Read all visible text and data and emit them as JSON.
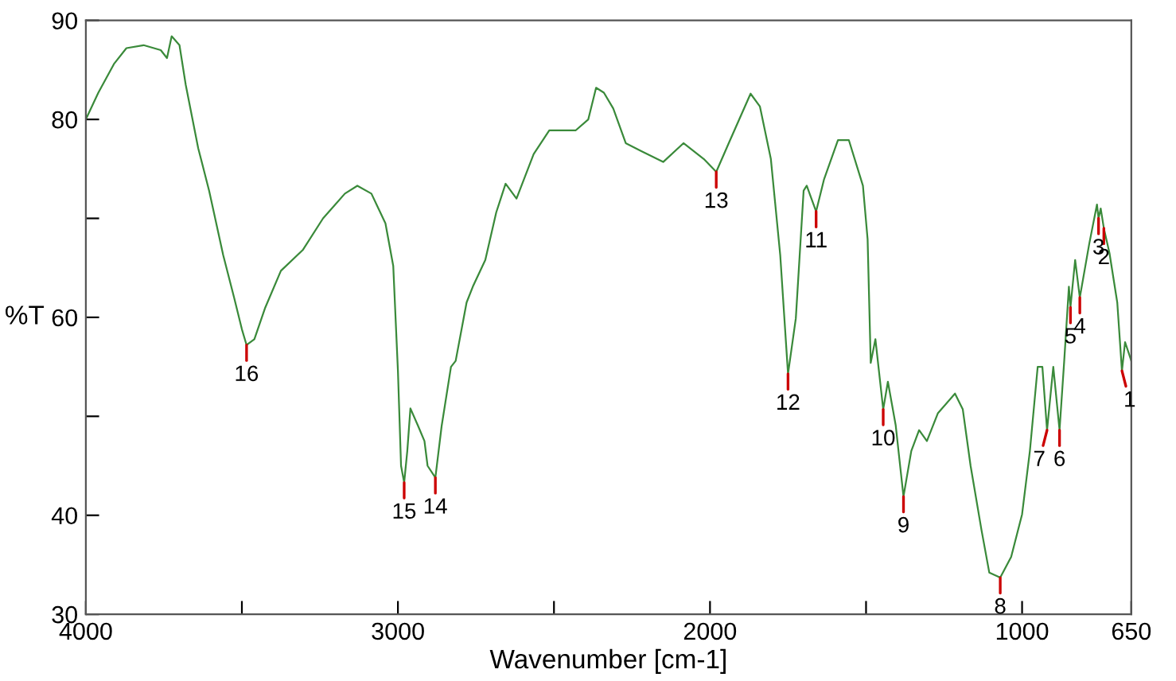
{
  "chart_data": {
    "type": "line",
    "xlabel": "Wavenumber [cm-1]",
    "ylabel": "%T",
    "xlim": [
      4000,
      650
    ],
    "ylim": [
      30,
      90
    ],
    "xticks": [
      4000,
      {
        "value": 3500,
        "label": null
      },
      3000,
      {
        "value": 2500,
        "label": null
      },
      2000,
      {
        "value": 1500,
        "label": null
      },
      1000,
      650
    ],
    "yticks": [
      30,
      40,
      {
        "value": 50,
        "label": null
      },
      60,
      {
        "value": 70,
        "label": null
      },
      80,
      90
    ],
    "grid": false,
    "marker": "none",
    "line_style": "solid",
    "series": [
      {
        "color": "#3a8a3a",
        "x": [
          4000,
          3960,
          3910,
          3870,
          3815,
          3760,
          3740,
          3725,
          3700,
          3680,
          3640,
          3605,
          3560,
          3525,
          3500,
          3485,
          3460,
          3425,
          3375,
          3305,
          3240,
          3170,
          3130,
          3085,
          3040,
          3015,
          3000,
          2990,
          2980,
          2970,
          2960,
          2935,
          2915,
          2905,
          2880,
          2860,
          2830,
          2815,
          2780,
          2760,
          2720,
          2685,
          2655,
          2620,
          2565,
          2515,
          2430,
          2390,
          2365,
          2340,
          2310,
          2270,
          2220,
          2150,
          2085,
          2020,
          1980,
          1940,
          1870,
          1840,
          1805,
          1775,
          1750,
          1725,
          1700,
          1690,
          1660,
          1635,
          1590,
          1555,
          1510,
          1495,
          1485,
          1470,
          1445,
          1430,
          1405,
          1380,
          1355,
          1330,
          1305,
          1270,
          1215,
          1190,
          1165,
          1130,
          1105,
          1070,
          1035,
          1000,
          975,
          950,
          935,
          920,
          900,
          880,
          865,
          850,
          845,
          830,
          815,
          785,
          760,
          755,
          748,
          738,
          720,
          695,
          680,
          670,
          650
        ],
        "values": [
          80.0,
          82.7,
          85.6,
          87.2,
          87.5,
          87.0,
          86.2,
          88.4,
          87.5,
          83.5,
          77.1,
          72.8,
          66.3,
          62.0,
          58.8,
          57.2,
          57.8,
          61.0,
          64.7,
          66.8,
          70.0,
          72.5,
          73.3,
          72.5,
          69.5,
          65.2,
          54.6,
          45.0,
          43.3,
          46.5,
          50.8,
          49.0,
          47.5,
          45.0,
          43.8,
          49.0,
          55.0,
          55.6,
          61.5,
          63.1,
          65.8,
          70.6,
          73.5,
          72.0,
          76.5,
          78.9,
          78.9,
          80.0,
          83.2,
          82.7,
          81.1,
          77.6,
          76.8,
          75.7,
          77.6,
          76.0,
          74.7,
          77.6,
          82.6,
          81.3,
          76.0,
          66.3,
          54.3,
          59.9,
          72.8,
          73.3,
          70.7,
          73.9,
          77.9,
          77.9,
          73.3,
          67.9,
          55.4,
          57.8,
          50.7,
          53.5,
          49.1,
          41.9,
          46.5,
          48.6,
          47.5,
          50.3,
          52.3,
          50.7,
          45.0,
          38.5,
          34.2,
          33.7,
          35.8,
          40.1,
          46.5,
          55.0,
          55.0,
          48.6,
          55.0,
          48.6,
          55.6,
          63.1,
          61.0,
          65.8,
          62.0,
          67.4,
          71.4,
          70.0,
          71.0,
          69.0,
          66.5,
          61.5,
          54.6,
          57.5,
          55.6
        ]
      }
    ],
    "annotations": [
      {
        "text": "1",
        "x": 680,
        "y": 54.6
      },
      {
        "text": "2",
        "x": 738,
        "y": 69.0
      },
      {
        "text": "3",
        "x": 755,
        "y": 70.0
      },
      {
        "text": "4",
        "x": 815,
        "y": 62.0
      },
      {
        "text": "5",
        "x": 845,
        "y": 61.0
      },
      {
        "text": "6",
        "x": 880,
        "y": 48.6
      },
      {
        "text": "7",
        "x": 920,
        "y": 48.6
      },
      {
        "text": "8",
        "x": 1070,
        "y": 33.7
      },
      {
        "text": "9",
        "x": 1380,
        "y": 41.9
      },
      {
        "text": "10",
        "x": 1445,
        "y": 50.7
      },
      {
        "text": "11",
        "x": 1660,
        "y": 70.7
      },
      {
        "text": "12",
        "x": 1750,
        "y": 54.3
      },
      {
        "text": "13",
        "x": 1980,
        "y": 74.7
      },
      {
        "text": "14",
        "x": 2880,
        "y": 43.8
      },
      {
        "text": "15",
        "x": 2980,
        "y": 43.3
      },
      {
        "text": "16",
        "x": 3485,
        "y": 57.2
      }
    ]
  }
}
